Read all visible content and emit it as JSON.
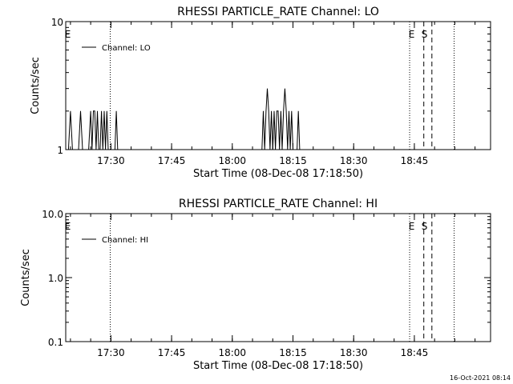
{
  "chart_data": [
    {
      "type": "line",
      "title": "RHESSI PARTICLE_RATE Channel: LO",
      "xlabel": "Start Time (08-Dec-08 17:18:50)",
      "ylabel": "Counts/sec",
      "y_scale": "log",
      "ylim": [
        1,
        10
      ],
      "y_ticks": [
        1,
        10
      ],
      "y_tick_labels": [
        "1",
        "10"
      ],
      "xlim": [
        "17:18:50",
        "19:03:50"
      ],
      "x_ticks": [
        "17:30",
        "17:45",
        "18:00",
        "18:15",
        "18:30",
        "18:45"
      ],
      "legend": "Channel: LO",
      "legend_position": "top-left",
      "grid": false,
      "markers": {
        "dotted": [
          "17:18:50",
          "17:29:50",
          "18:43:50",
          "18:54:50"
        ],
        "dashed": [
          "18:47:20",
          "18:49:20"
        ],
        "labels": [
          {
            "text": "E",
            "time": "17:19:20"
          },
          {
            "text": "E",
            "time": "18:44:20"
          },
          {
            "text": "S",
            "time": "18:47:30"
          }
        ]
      },
      "series": [
        {
          "name": "Channel: LO",
          "values": [
            [
              "17:19:30",
              1
            ],
            [
              "17:20:00",
              2
            ],
            [
              "17:20:30",
              1
            ],
            [
              "17:22:00",
              1
            ],
            [
              "17:22:30",
              2
            ],
            [
              "17:23:00",
              1
            ],
            [
              "17:24:30",
              1
            ],
            [
              "17:25:00",
              2
            ],
            [
              "17:25:20",
              1
            ],
            [
              "17:25:40",
              2
            ],
            [
              "17:26:00",
              2
            ],
            [
              "17:26:20",
              1
            ],
            [
              "17:26:40",
              2
            ],
            [
              "17:27:00",
              1
            ],
            [
              "17:27:20",
              1
            ],
            [
              "17:27:40",
              2
            ],
            [
              "17:28:00",
              1
            ],
            [
              "17:28:20",
              2
            ],
            [
              "17:28:40",
              1
            ],
            [
              "17:29:00",
              2
            ],
            [
              "17:29:20",
              1
            ],
            [
              "17:31:00",
              1
            ],
            [
              "17:31:20",
              2
            ],
            [
              "17:31:40",
              1
            ],
            [
              "18:07:20",
              1
            ],
            [
              "18:07:40",
              2
            ],
            [
              "18:08:00",
              1
            ],
            [
              "18:08:20",
              2
            ],
            [
              "18:08:40",
              3
            ],
            [
              "18:09:00",
              2
            ],
            [
              "18:09:20",
              1
            ],
            [
              "18:09:40",
              2
            ],
            [
              "18:10:00",
              1
            ],
            [
              "18:10:20",
              2
            ],
            [
              "18:10:40",
              1
            ],
            [
              "18:11:00",
              2
            ],
            [
              "18:11:20",
              2
            ],
            [
              "18:11:40",
              1
            ],
            [
              "18:12:00",
              2
            ],
            [
              "18:12:20",
              1
            ],
            [
              "18:12:40",
              2
            ],
            [
              "18:13:00",
              3
            ],
            [
              "18:13:20",
              2
            ],
            [
              "18:13:40",
              1
            ],
            [
              "18:14:00",
              2
            ],
            [
              "18:14:20",
              1
            ],
            [
              "18:14:40",
              2
            ],
            [
              "18:15:00",
              1
            ],
            [
              "18:16:00",
              1
            ],
            [
              "18:16:20",
              2
            ],
            [
              "18:16:40",
              1
            ]
          ]
        }
      ]
    },
    {
      "type": "line",
      "title": "RHESSI PARTICLE_RATE Channel: HI",
      "xlabel": "Start Time (08-Dec-08 17:18:50)",
      "ylabel": "Counts/sec",
      "y_scale": "log",
      "ylim": [
        0.1,
        10
      ],
      "y_ticks": [
        0.1,
        1,
        10
      ],
      "y_tick_labels": [
        "0.1",
        "1.0",
        "10.0"
      ],
      "xlim": [
        "17:18:50",
        "19:03:50"
      ],
      "x_ticks": [
        "17:30",
        "17:45",
        "18:00",
        "18:15",
        "18:30",
        "18:45"
      ],
      "legend": "Channel: HI",
      "legend_position": "top-left",
      "grid": false,
      "markers": {
        "dotted": [
          "17:18:50",
          "17:29:50",
          "18:43:50",
          "18:54:50"
        ],
        "dashed": [
          "18:47:20",
          "18:49:20"
        ],
        "labels": [
          {
            "text": "E",
            "time": "17:19:20"
          },
          {
            "text": "E",
            "time": "18:44:20"
          },
          {
            "text": "S",
            "time": "18:47:30"
          }
        ]
      },
      "series": [
        {
          "name": "Channel: HI",
          "values": []
        }
      ]
    }
  ],
  "timestamp": "16-Oct-2021 08:14"
}
